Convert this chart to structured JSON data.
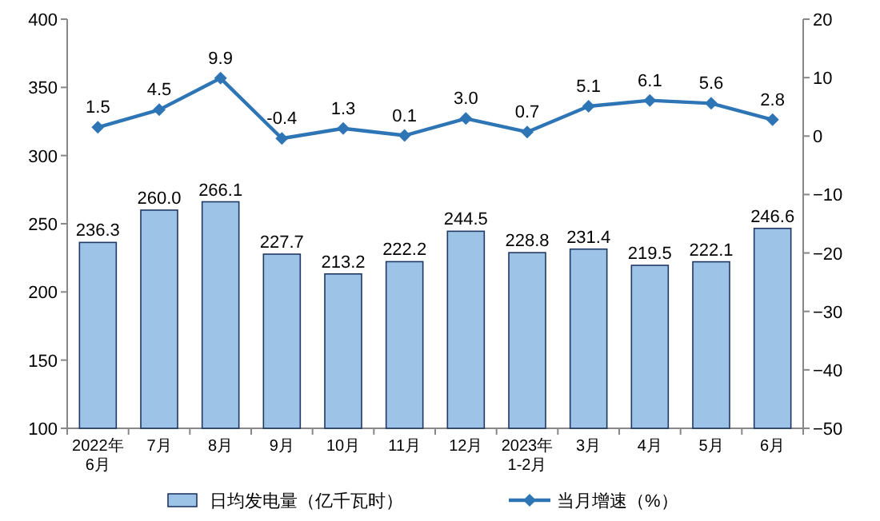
{
  "chart_data": {
    "type": "bar",
    "categories": [
      "2022年\n6月",
      "7月",
      "8月",
      "9月",
      "10月",
      "11月",
      "12月",
      "2023年\n1-2月",
      "3月",
      "4月",
      "5月",
      "6月"
    ],
    "series": [
      {
        "name": "日均发电量（亿千瓦时）",
        "color": "#9dc3e6",
        "values": [
          236.3,
          260.0,
          266.1,
          227.7,
          213.2,
          222.2,
          244.5,
          228.8,
          231.4,
          219.5,
          222.1,
          246.6
        ],
        "value_labels": [
          "236.3",
          "260.0",
          "266.1",
          "227.7",
          "213.2",
          "222.2",
          "244.5",
          "228.8",
          "231.4",
          "219.5",
          "222.1",
          "246.6"
        ]
      },
      {
        "name": "当月增速（%）",
        "type": "line",
        "axis": "y2",
        "color": "#2e75b6",
        "marker": "diamond",
        "values": [
          1.5,
          4.5,
          9.9,
          -0.4,
          1.3,
          0.1,
          3.0,
          0.7,
          5.1,
          6.1,
          5.6,
          2.8
        ],
        "value_labels": [
          "1.5",
          "4.5",
          "9.9",
          "-0.4",
          "1.3",
          "0.1",
          "3.0",
          "0.7",
          "5.1",
          "6.1",
          "5.6",
          "2.8"
        ]
      }
    ],
    "ylim": [
      100,
      400
    ],
    "yticks": [
      100,
      150,
      200,
      250,
      300,
      350,
      400
    ],
    "y2lim": [
      -50,
      20
    ],
    "y2ticks": [
      -50,
      -40,
      -30,
      -20,
      -10,
      0,
      10,
      20
    ],
    "legend": "bottom"
  }
}
